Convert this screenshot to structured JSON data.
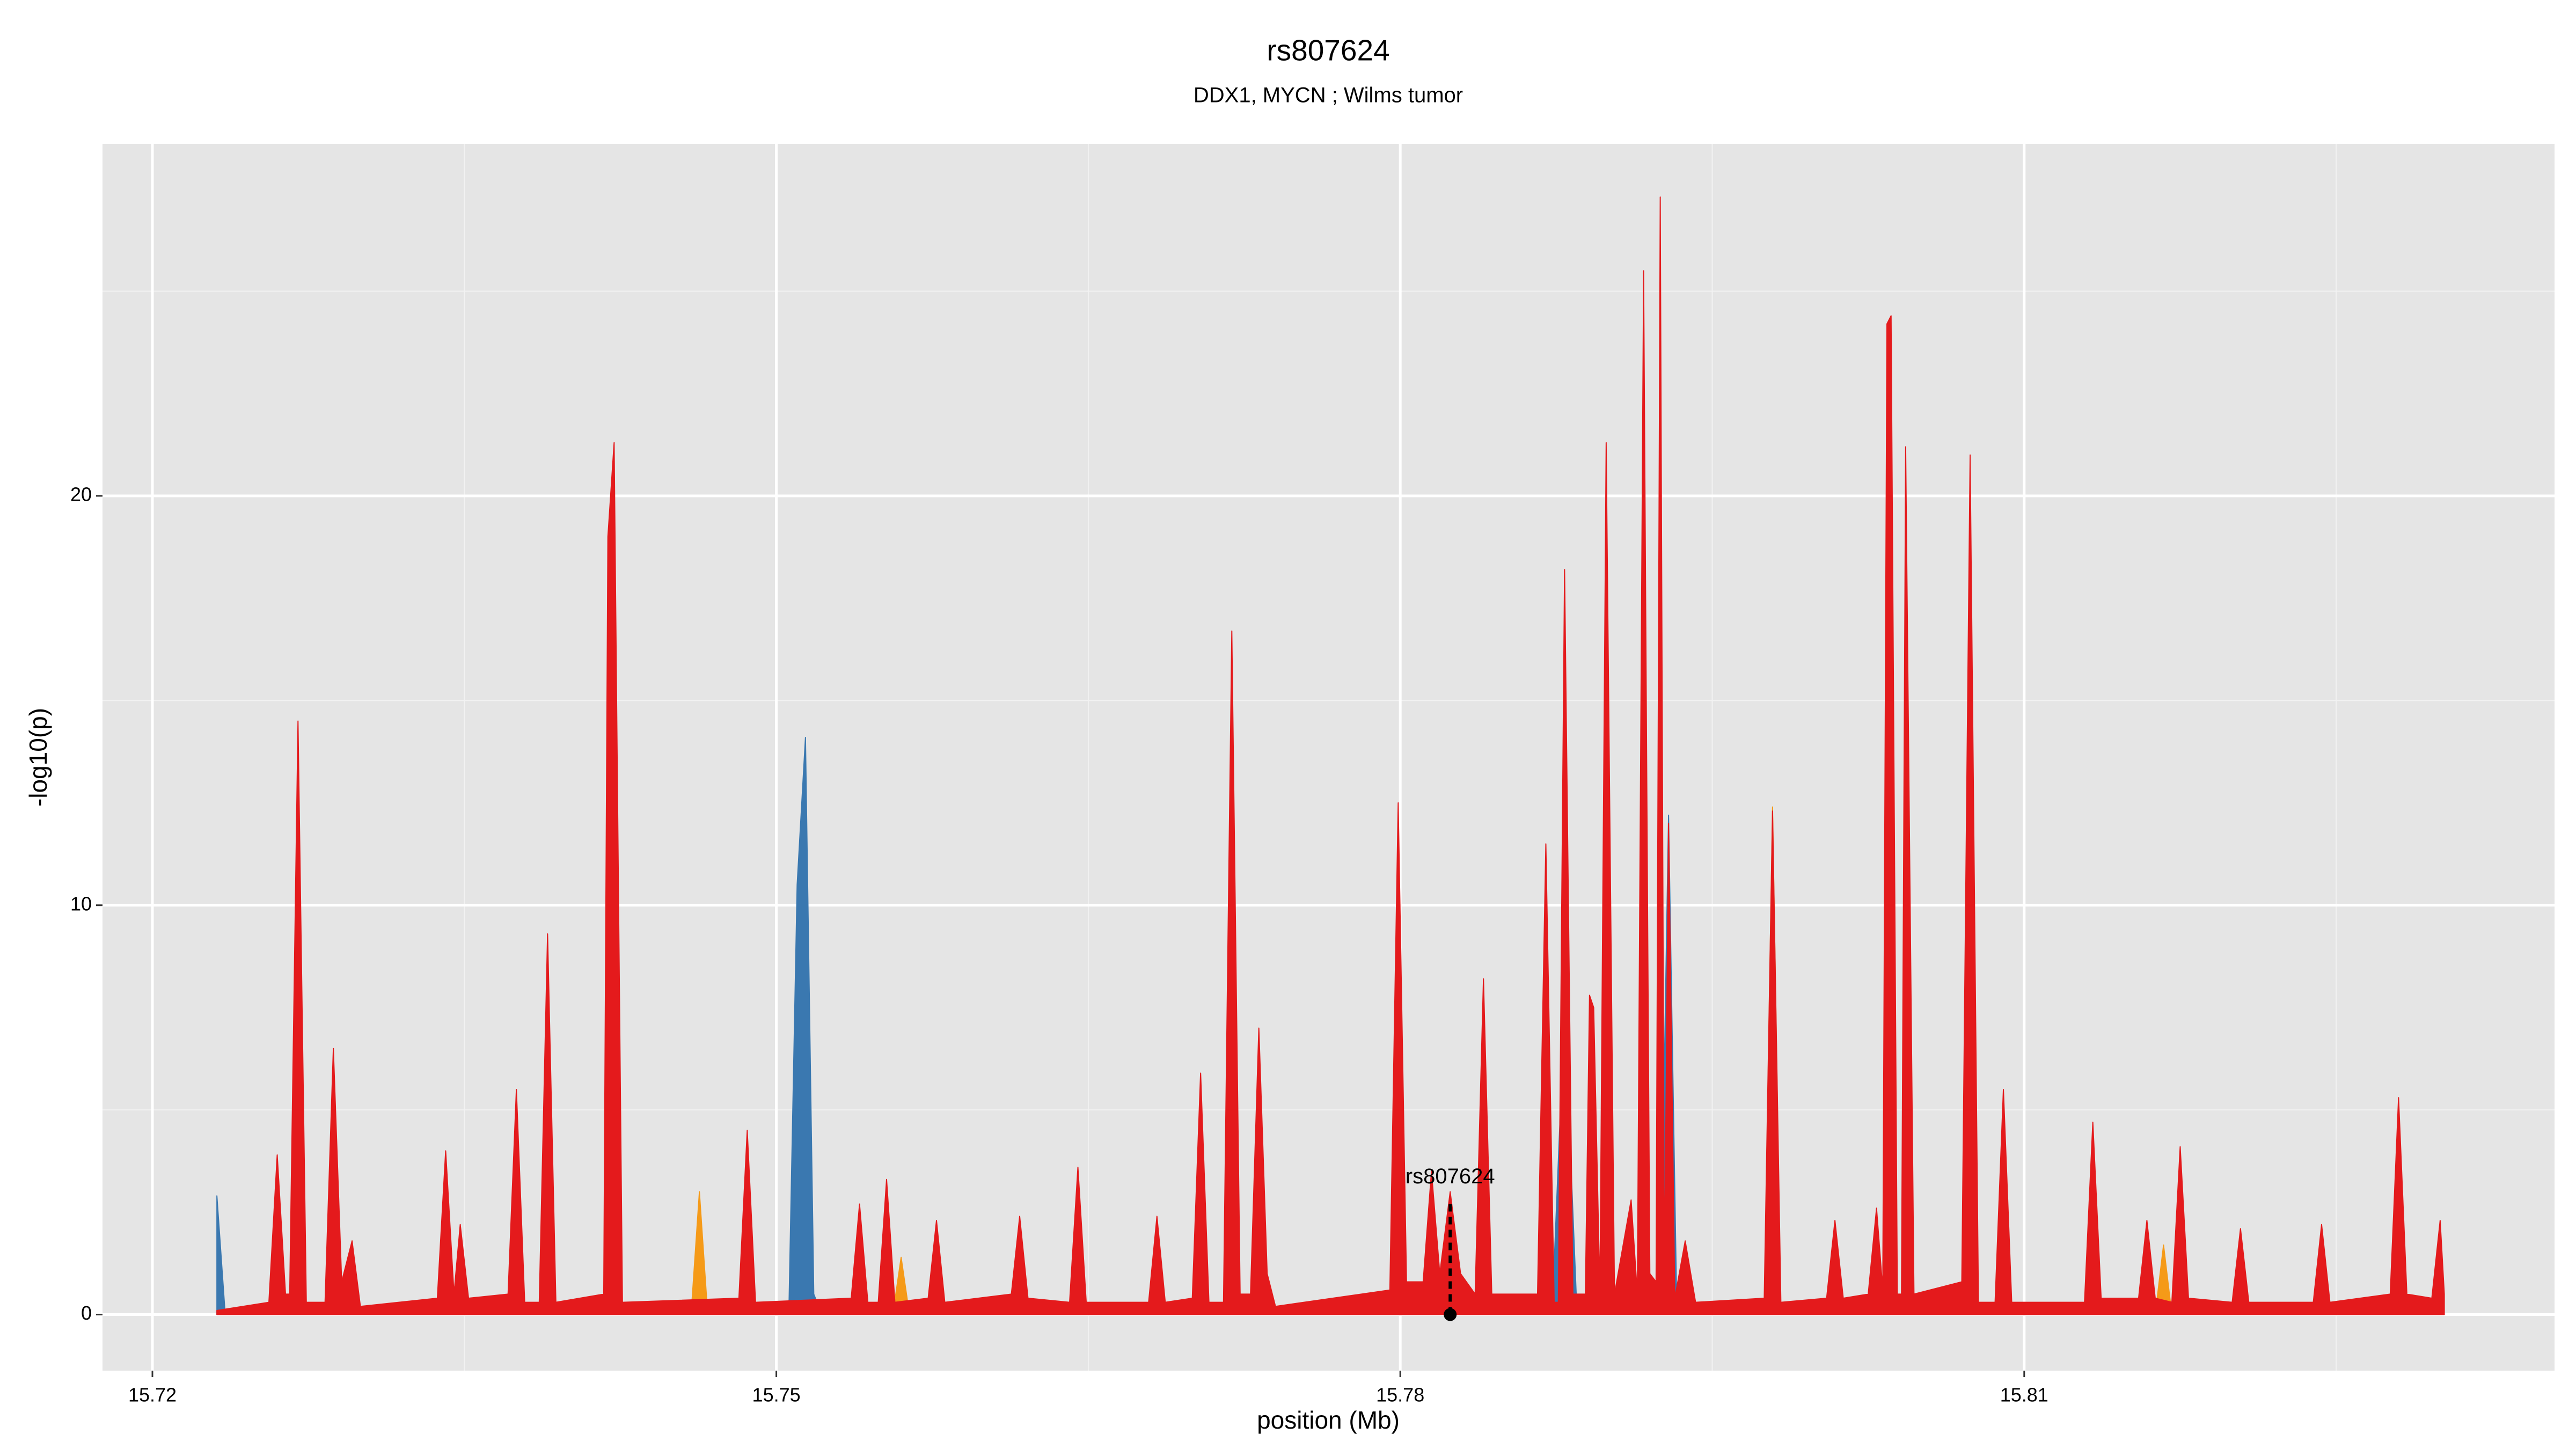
{
  "chart_data": {
    "type": "area",
    "title": "rs807624",
    "subtitle": "DDX1, MYCN ; Wilms tumor",
    "x_label": "position (Mb)",
    "y_label": "-log10(p)",
    "xlim": [
      15.7176,
      15.8355
    ],
    "ylim": [
      -1.37,
      28.6
    ],
    "xticks": [
      15.72,
      15.75,
      15.78,
      15.81
    ],
    "yticks": [
      0,
      10,
      20
    ],
    "grid": true,
    "series": [
      {
        "color": "#3a78b0",
        "x": [
          15.7231,
          15.7235,
          15.7506,
          15.751,
          15.7514,
          15.7518,
          15.7522,
          15.7873,
          15.7877,
          15.7879,
          15.7881,
          15.7885,
          15.7925,
          15.7929,
          15.7933
        ],
        "values": [
          2.9,
          0,
          0,
          10.5,
          14.1,
          0.5,
          0,
          0,
          5,
          17.5,
          5,
          0,
          0,
          12.2,
          0
        ]
      },
      {
        "color": "#f59a18",
        "x": [
          15.7292,
          15.7296,
          15.73,
          15.7459,
          15.7463,
          15.7467,
          15.7556,
          15.756,
          15.7564,
          15.7975,
          15.7979,
          15.7983,
          15.8163,
          15.8167,
          15.8171
        ],
        "values": [
          0,
          1.8,
          0,
          0,
          3.0,
          0,
          0,
          1.4,
          0,
          0,
          12.4,
          0,
          0,
          1.7,
          0
        ]
      },
      {
        "color": "#e41a1c",
        "x": [
          15.7231,
          15.7256,
          15.726,
          15.7264,
          15.7266,
          15.727,
          15.7274,
          15.7283,
          15.7287,
          15.7291,
          15.7296,
          15.73,
          15.7337,
          15.7341,
          15.7345,
          15.7348,
          15.7352,
          15.7371,
          15.7375,
          15.7379,
          15.7386,
          15.739,
          15.7394,
          15.7417,
          15.7419,
          15.7422,
          15.7426,
          15.7482,
          15.7486,
          15.749,
          15.7536,
          15.754,
          15.7544,
          15.7549,
          15.7553,
          15.7557,
          15.7573,
          15.7577,
          15.7581,
          15.7613,
          15.7617,
          15.7621,
          15.7641,
          15.7645,
          15.7649,
          15.7679,
          15.7683,
          15.7687,
          15.77,
          15.7704,
          15.7708,
          15.7715,
          15.7719,
          15.7723,
          15.7728,
          15.7732,
          15.7736,
          15.774,
          15.7795,
          15.7799,
          15.7803,
          15.7811,
          15.7815,
          15.7819,
          15.7824,
          15.7829,
          15.7836,
          15.784,
          15.7844,
          15.7866,
          15.787,
          15.7874,
          15.7876,
          15.7879,
          15.7883,
          15.7889,
          15.7891,
          15.7893,
          15.7896,
          15.7899,
          15.7903,
          15.7911,
          15.7914,
          15.7917,
          15.792,
          15.7923,
          15.7925,
          15.7927,
          15.7929,
          15.7932,
          15.7937,
          15.7942,
          15.7975,
          15.7979,
          15.7983,
          15.8005,
          15.8009,
          15.8013,
          15.8025,
          15.8029,
          15.8032,
          15.8034,
          15.8036,
          15.8039,
          15.8041,
          15.8043,
          15.8047,
          15.807,
          15.8074,
          15.8078,
          15.8086,
          15.809,
          15.8094,
          15.8129,
          15.8133,
          15.8137,
          15.8155,
          15.8159,
          15.8163,
          15.8171,
          15.8175,
          15.8179,
          15.82,
          15.8204,
          15.8208,
          15.8239,
          15.8243,
          15.8247,
          15.8276,
          15.828,
          15.8284,
          15.8296,
          15.83,
          15.8302
        ],
        "values": [
          0.1,
          0.3,
          3.9,
          0.5,
          0.5,
          14.5,
          0.3,
          0.3,
          6.5,
          0.8,
          1.8,
          0.2,
          0.4,
          4.0,
          0.5,
          2.2,
          0.4,
          0.5,
          5.5,
          0.3,
          0.3,
          9.3,
          0.3,
          0.5,
          19.0,
          21.3,
          0.3,
          0.4,
          4.5,
          0.3,
          0.4,
          2.7,
          0.3,
          0.3,
          3.3,
          0.3,
          0.4,
          2.3,
          0.3,
          0.5,
          2.4,
          0.4,
          0.3,
          3.6,
          0.3,
          0.3,
          2.4,
          0.3,
          0.4,
          5.9,
          0.3,
          0.3,
          16.7,
          0.5,
          0.5,
          7.0,
          1.0,
          0.2,
          0.6,
          12.5,
          0.8,
          0.8,
          3.5,
          1.0,
          3.0,
          1.0,
          0.5,
          8.2,
          0.5,
          0.5,
          11.5,
          0.3,
          0.3,
          18.2,
          0.5,
          0.5,
          7.8,
          7.5,
          0.5,
          21.3,
          0.5,
          2.8,
          0.5,
          25.5,
          1.0,
          0.8,
          27.3,
          0.8,
          12.0,
          0.4,
          1.8,
          0.3,
          0.4,
          12.3,
          0.3,
          0.4,
          2.3,
          0.4,
          0.5,
          2.6,
          0.6,
          24.2,
          24.4,
          0.5,
          0.5,
          21.2,
          0.5,
          0.8,
          21.0,
          0.3,
          0.3,
          5.5,
          0.3,
          0.3,
          4.7,
          0.4,
          0.4,
          2.3,
          0.4,
          0.3,
          4.1,
          0.4,
          0.3,
          2.1,
          0.3,
          0.3,
          2.2,
          0.3,
          0.5,
          5.3,
          0.5,
          0.4,
          2.3,
          0.5
        ]
      }
    ],
    "annotation": {
      "text": "rs807624",
      "x": 15.7824,
      "y": 0
    }
  }
}
